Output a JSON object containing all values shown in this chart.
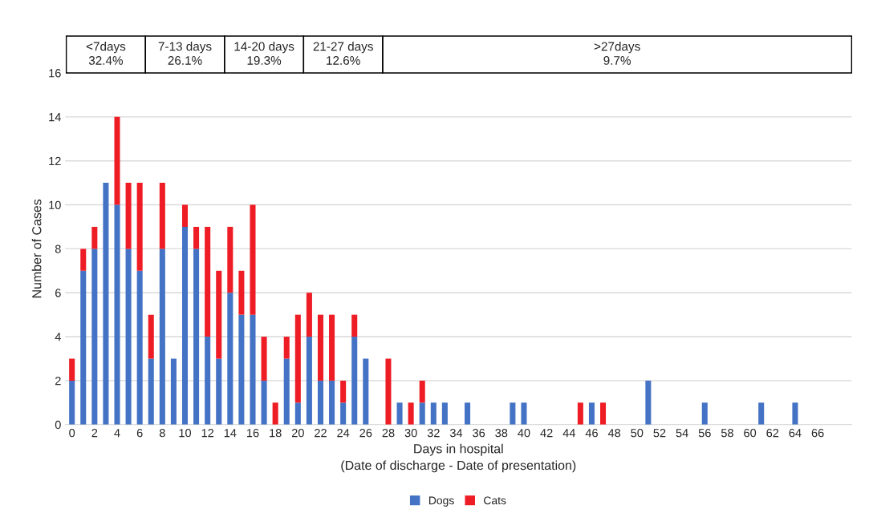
{
  "chart_data": {
    "type": "bar",
    "stacked": true,
    "xlabel": "Days in hospital\n(Date of discharge - Date of presentation)",
    "ylabel": "Number of Cases",
    "categories": [
      "0",
      null,
      "2",
      null,
      "4",
      null,
      "6",
      null,
      "8",
      null,
      "10",
      null,
      "12",
      null,
      "14",
      null,
      "16",
      null,
      "18",
      null,
      "20",
      null,
      "22",
      null,
      "24",
      null,
      "26",
      null,
      "28",
      null,
      "30",
      null,
      "32",
      null,
      "34",
      null,
      "36",
      null,
      "38",
      null,
      "40",
      null,
      "42",
      null,
      "44",
      null,
      "46",
      null,
      "48",
      null,
      "50",
      null,
      "52",
      null,
      "54",
      null,
      "56",
      null,
      "58",
      null,
      "60",
      null,
      "62",
      null,
      "64",
      null,
      "66",
      null
    ],
    "series": [
      {
        "name": "Dogs",
        "color": "#4472c4",
        "values": [
          2,
          7,
          8,
          11,
          10,
          8,
          7,
          3,
          8,
          3,
          9,
          8,
          4,
          3,
          6,
          5,
          5,
          2,
          0,
          3,
          1,
          4,
          2,
          2,
          1,
          4,
          3,
          0,
          0,
          1,
          0,
          1,
          1,
          1,
          0,
          1,
          0,
          0,
          0,
          1,
          1,
          0,
          0,
          0,
          0,
          0,
          1,
          0,
          0,
          0,
          0,
          2,
          0,
          0,
          0,
          0,
          1,
          0,
          0,
          0,
          0,
          1,
          0,
          0,
          1,
          0,
          0,
          0
        ]
      },
      {
        "name": "Cats",
        "color": "#ee1c25",
        "values": [
          1,
          1,
          1,
          0,
          4,
          3,
          4,
          2,
          3,
          0,
          1,
          1,
          5,
          4,
          3,
          2,
          5,
          2,
          1,
          1,
          4,
          2,
          3,
          3,
          1,
          1,
          0,
          0,
          3,
          0,
          1,
          1,
          0,
          0,
          0,
          0,
          0,
          0,
          0,
          0,
          0,
          0,
          0,
          0,
          0,
          1,
          0,
          1,
          0,
          0,
          0,
          0,
          0,
          0,
          0,
          0,
          0,
          0,
          0,
          0,
          0,
          0,
          0,
          0,
          0,
          0,
          0,
          0
        ]
      }
    ],
    "ylim": [
      0,
      16
    ],
    "yticks": [
      0,
      2,
      4,
      6,
      8,
      10,
      12,
      14,
      16
    ],
    "grid": "y",
    "legend": "bottom",
    "annotations": [
      "<7days\n32.4%",
      "7-13 days\n26.1%",
      "14-20 days\n19.3%",
      "21-27 days\n12.6%",
      ">27days\n9.7%"
    ]
  }
}
